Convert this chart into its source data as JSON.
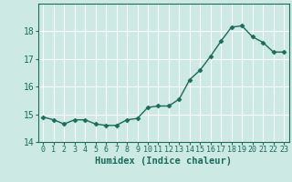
{
  "x": [
    0,
    1,
    2,
    3,
    4,
    5,
    6,
    7,
    8,
    9,
    10,
    11,
    12,
    13,
    14,
    15,
    16,
    17,
    18,
    19,
    20,
    21,
    22,
    23
  ],
  "y": [
    14.9,
    14.8,
    14.65,
    14.8,
    14.8,
    14.65,
    14.6,
    14.6,
    14.8,
    14.85,
    15.25,
    15.3,
    15.3,
    15.55,
    16.25,
    16.6,
    17.1,
    17.65,
    18.15,
    18.2,
    17.8,
    17.6,
    17.25,
    17.25
  ],
  "xlabel": "Humidex (Indice chaleur)",
  "ylim": [
    14,
    19
  ],
  "xlim": [
    -0.5,
    23.5
  ],
  "yticks": [
    14,
    15,
    16,
    17,
    18
  ],
  "xticks": [
    0,
    1,
    2,
    3,
    4,
    5,
    6,
    7,
    8,
    9,
    10,
    11,
    12,
    13,
    14,
    15,
    16,
    17,
    18,
    19,
    20,
    21,
    22,
    23
  ],
  "line_color": "#1a6b5a",
  "marker": "D",
  "marker_size": 2.5,
  "bg_color": "#cce9e4",
  "grid_color": "#ffffff",
  "xlabel_fontsize": 7.5,
  "ytick_fontsize": 7,
  "xtick_fontsize": 6
}
